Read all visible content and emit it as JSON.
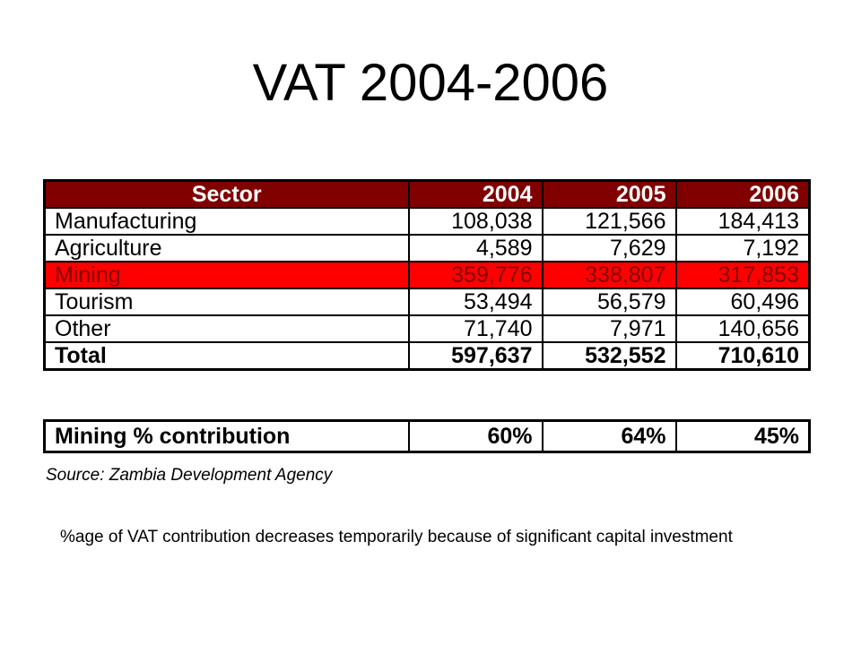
{
  "title": "VAT 2004-2006",
  "chart_data": [
    {
      "type": "table",
      "columns": [
        "Sector",
        "2004",
        "2005",
        "2006"
      ],
      "rows": [
        {
          "sector": "Manufacturing",
          "values": [
            "108,038",
            "121,566",
            "184,413"
          ]
        },
        {
          "sector": "Agriculture",
          "values": [
            "4,589",
            "7,629",
            "7,192"
          ]
        },
        {
          "sector": "Mining",
          "values": [
            "359,776",
            "338,807",
            "317,853"
          ],
          "highlight": true
        },
        {
          "sector": "Tourism",
          "values": [
            "53,494",
            "56,579",
            "60,496"
          ]
        },
        {
          "sector": "Other",
          "values": [
            "71,740",
            "7,971",
            "140,656"
          ]
        }
      ],
      "total": {
        "sector": "Total",
        "values": [
          "597,637",
          "532,552",
          "710,610"
        ]
      },
      "colors": {
        "header_bg": "#800000",
        "header_text": "#ffffff",
        "highlight_bg": "#ff0000",
        "highlight_text": "#800000"
      }
    },
    {
      "type": "table",
      "rows": [
        {
          "label": "Mining % contribution",
          "values": [
            "60%",
            "64%",
            "45%"
          ]
        }
      ]
    }
  ],
  "source": "Source: Zambia Development Agency",
  "note": "%age of VAT contribution decreases temporarily because of significant capital investment"
}
